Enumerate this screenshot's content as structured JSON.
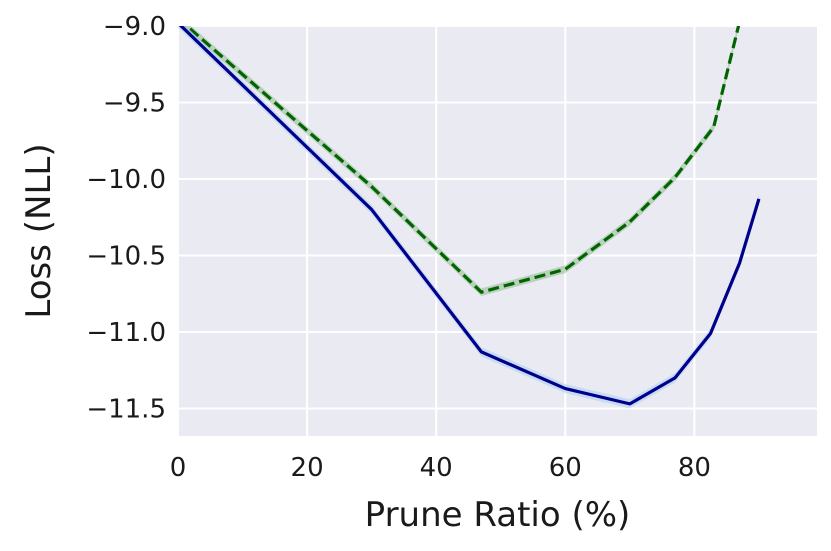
{
  "chart_data": {
    "type": "line",
    "title": "",
    "xlabel": "Prune Ratio (%)",
    "ylabel": "Loss (NLL)",
    "xlim": [
      0,
      99
    ],
    "ylim": [
      -11.68,
      -9.0
    ],
    "xticks": [
      0,
      20,
      40,
      60,
      80
    ],
    "yticks": [
      -9.0,
      -9.5,
      -10.0,
      -10.5,
      -11.0,
      -11.5
    ],
    "xtick_labels": [
      "0",
      "20",
      "40",
      "60",
      "80"
    ],
    "ytick_labels": [
      "−9.0",
      "−9.5",
      "−10.0",
      "−10.5",
      "−11.0",
      "−11.5"
    ],
    "grid": true,
    "legend": "none",
    "background_color": "#eaeaf2",
    "series": [
      {
        "style": "dashed",
        "color": "#006400",
        "band_color": "#8fbc8f",
        "band_half_width": 0.025,
        "x": [
          0,
          30,
          47,
          60,
          70,
          77,
          83,
          88
        ],
        "y": [
          -8.95,
          -10.05,
          -10.74,
          -10.59,
          -10.28,
          -9.99,
          -9.66,
          -8.8
        ]
      },
      {
        "style": "solid",
        "color": "#00008b",
        "band_color": "#a8d0f5",
        "band_half_width": 0.03,
        "x": [
          0,
          30,
          47,
          60,
          70,
          77,
          82.5,
          87,
          90
        ],
        "y": [
          -8.98,
          -10.2,
          -11.13,
          -11.37,
          -11.47,
          -11.3,
          -11.01,
          -10.55,
          -10.13
        ]
      }
    ]
  }
}
